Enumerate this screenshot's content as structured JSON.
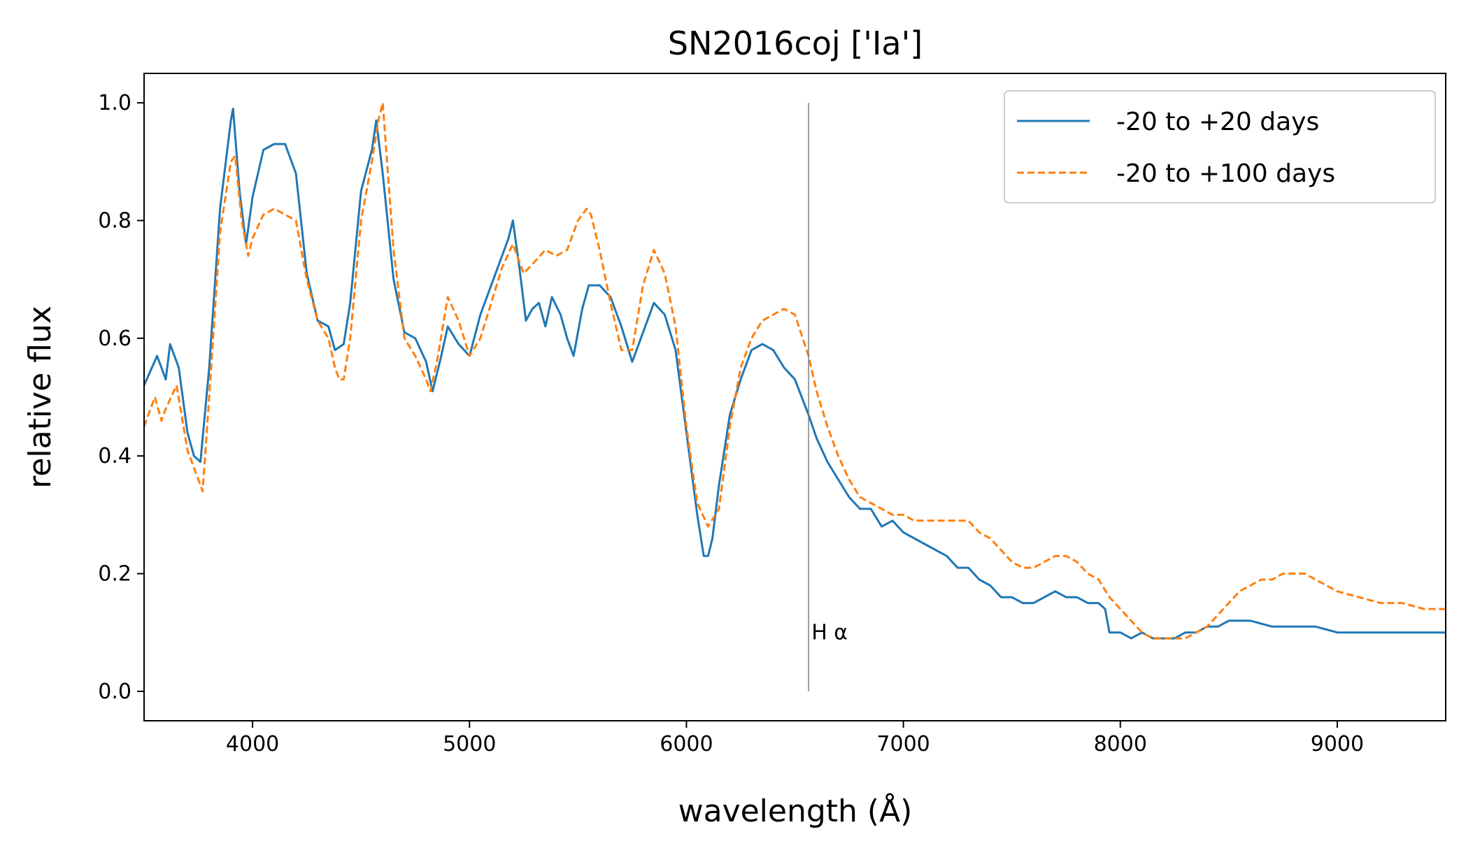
{
  "chart_data": {
    "type": "line",
    "title": "SN2016coj ['Ia']",
    "xlabel": "wavelength (Å)",
    "ylabel": "relative flux",
    "xlim": [
      3500,
      9500
    ],
    "ylim": [
      -0.05,
      1.05
    ],
    "xticks": [
      4000,
      5000,
      6000,
      7000,
      8000,
      9000
    ],
    "xtick_labels": [
      "4000",
      "5000",
      "6000",
      "7000",
      "8000",
      "9000"
    ],
    "yticks": [
      0.0,
      0.2,
      0.4,
      0.6,
      0.8,
      1.0
    ],
    "ytick_labels": [
      "0.0",
      "0.2",
      "0.4",
      "0.6",
      "0.8",
      "1.0"
    ],
    "grid": false,
    "legend_position": "top-right",
    "annotations": [
      {
        "type": "vline",
        "x": 6563,
        "y_range": [
          0.0,
          1.0
        ],
        "color": "#808080",
        "label": "H α",
        "label_x": 6570,
        "label_y": 0.1
      }
    ],
    "series": [
      {
        "name": "-20 to +20 days",
        "color": "#1f77b4",
        "style": "solid",
        "x": [
          3500,
          3560,
          3600,
          3620,
          3660,
          3700,
          3730,
          3760,
          3800,
          3850,
          3900,
          3910,
          3940,
          3970,
          4000,
          4050,
          4100,
          4150,
          4200,
          4250,
          4300,
          4350,
          4380,
          4420,
          4450,
          4500,
          4550,
          4570,
          4600,
          4650,
          4700,
          4750,
          4800,
          4830,
          4870,
          4900,
          4950,
          5000,
          5050,
          5100,
          5150,
          5180,
          5200,
          5230,
          5260,
          5290,
          5320,
          5350,
          5380,
          5420,
          5450,
          5480,
          5520,
          5550,
          5600,
          5650,
          5700,
          5750,
          5800,
          5850,
          5900,
          5950,
          6000,
          6050,
          6080,
          6100,
          6120,
          6150,
          6200,
          6250,
          6300,
          6350,
          6400,
          6450,
          6500,
          6563,
          6600,
          6650,
          6700,
          6750,
          6800,
          6850,
          6900,
          6950,
          7000,
          7050,
          7100,
          7150,
          7200,
          7250,
          7300,
          7350,
          7400,
          7450,
          7500,
          7550,
          7600,
          7650,
          7700,
          7750,
          7800,
          7850,
          7900,
          7930,
          7950,
          8000,
          8050,
          8100,
          8150,
          8200,
          8250,
          8300,
          8350,
          8400,
          8450,
          8500,
          8600,
          8700,
          8800,
          8900,
          9000,
          9100,
          9200,
          9300,
          9400,
          9500
        ],
        "y": [
          0.52,
          0.57,
          0.53,
          0.59,
          0.55,
          0.44,
          0.4,
          0.39,
          0.55,
          0.82,
          0.97,
          0.99,
          0.85,
          0.76,
          0.84,
          0.92,
          0.93,
          0.93,
          0.88,
          0.71,
          0.63,
          0.62,
          0.58,
          0.59,
          0.66,
          0.85,
          0.92,
          0.97,
          0.88,
          0.7,
          0.61,
          0.6,
          0.56,
          0.51,
          0.57,
          0.62,
          0.59,
          0.57,
          0.64,
          0.69,
          0.74,
          0.77,
          0.8,
          0.72,
          0.63,
          0.65,
          0.66,
          0.62,
          0.67,
          0.64,
          0.6,
          0.57,
          0.65,
          0.69,
          0.69,
          0.67,
          0.62,
          0.56,
          0.61,
          0.66,
          0.64,
          0.58,
          0.44,
          0.3,
          0.23,
          0.23,
          0.26,
          0.35,
          0.47,
          0.53,
          0.58,
          0.59,
          0.58,
          0.55,
          0.53,
          0.47,
          0.43,
          0.39,
          0.36,
          0.33,
          0.31,
          0.31,
          0.28,
          0.29,
          0.27,
          0.26,
          0.25,
          0.24,
          0.23,
          0.21,
          0.21,
          0.19,
          0.18,
          0.16,
          0.16,
          0.15,
          0.15,
          0.16,
          0.17,
          0.16,
          0.16,
          0.15,
          0.15,
          0.14,
          0.1,
          0.1,
          0.09,
          0.1,
          0.09,
          0.09,
          0.09,
          0.1,
          0.1,
          0.11,
          0.11,
          0.12,
          0.12,
          0.11,
          0.11,
          0.11,
          0.1,
          0.1,
          0.1,
          0.1,
          0.1,
          0.1
        ]
      },
      {
        "name": "-20 to +100 days",
        "color": "#ff7f0e",
        "style": "dashed",
        "x": [
          3500,
          3550,
          3580,
          3600,
          3650,
          3700,
          3730,
          3770,
          3800,
          3850,
          3900,
          3920,
          3950,
          3980,
          4000,
          4050,
          4100,
          4150,
          4200,
          4250,
          4300,
          4350,
          4380,
          4400,
          4420,
          4450,
          4500,
          4550,
          4580,
          4600,
          4650,
          4700,
          4750,
          4800,
          4820,
          4850,
          4900,
          4950,
          5000,
          5050,
          5100,
          5150,
          5200,
          5250,
          5300,
          5350,
          5400,
          5450,
          5500,
          5540,
          5560,
          5600,
          5650,
          5700,
          5750,
          5800,
          5850,
          5900,
          5950,
          6000,
          6050,
          6100,
          6150,
          6200,
          6250,
          6300,
          6350,
          6400,
          6450,
          6500,
          6563,
          6600,
          6650,
          6700,
          6750,
          6800,
          6850,
          6900,
          6950,
          7000,
          7050,
          7100,
          7150,
          7200,
          7250,
          7300,
          7350,
          7400,
          7450,
          7500,
          7550,
          7600,
          7650,
          7700,
          7750,
          7800,
          7850,
          7900,
          7950,
          8000,
          8050,
          8100,
          8150,
          8200,
          8250,
          8300,
          8350,
          8400,
          8450,
          8500,
          8550,
          8600,
          8650,
          8700,
          8750,
          8800,
          8850,
          8900,
          8950,
          9000,
          9100,
          9200,
          9300,
          9400,
          9500
        ],
        "y": [
          0.45,
          0.5,
          0.46,
          0.48,
          0.52,
          0.41,
          0.38,
          0.34,
          0.5,
          0.78,
          0.9,
          0.91,
          0.8,
          0.74,
          0.77,
          0.81,
          0.82,
          0.81,
          0.8,
          0.7,
          0.63,
          0.6,
          0.55,
          0.53,
          0.53,
          0.6,
          0.8,
          0.9,
          0.97,
          1.0,
          0.75,
          0.6,
          0.57,
          0.53,
          0.51,
          0.56,
          0.67,
          0.63,
          0.57,
          0.6,
          0.66,
          0.72,
          0.76,
          0.71,
          0.73,
          0.75,
          0.74,
          0.75,
          0.8,
          0.82,
          0.81,
          0.75,
          0.66,
          0.58,
          0.58,
          0.69,
          0.75,
          0.71,
          0.62,
          0.45,
          0.32,
          0.28,
          0.31,
          0.45,
          0.55,
          0.6,
          0.63,
          0.64,
          0.65,
          0.64,
          0.57,
          0.51,
          0.45,
          0.4,
          0.36,
          0.33,
          0.32,
          0.31,
          0.3,
          0.3,
          0.29,
          0.29,
          0.29,
          0.29,
          0.29,
          0.29,
          0.27,
          0.26,
          0.24,
          0.22,
          0.21,
          0.21,
          0.22,
          0.23,
          0.23,
          0.22,
          0.2,
          0.19,
          0.16,
          0.14,
          0.12,
          0.1,
          0.09,
          0.09,
          0.09,
          0.09,
          0.1,
          0.11,
          0.13,
          0.15,
          0.17,
          0.18,
          0.19,
          0.19,
          0.2,
          0.2,
          0.2,
          0.19,
          0.18,
          0.17,
          0.16,
          0.15,
          0.15,
          0.14,
          0.14
        ]
      }
    ]
  }
}
